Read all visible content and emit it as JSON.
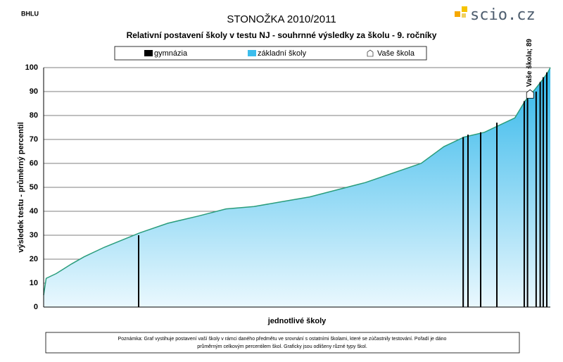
{
  "header": {
    "code": "BHLU",
    "logo": "scio.cz"
  },
  "chart_data": {
    "type": "area",
    "title": "STONOŽKA 2010/2011",
    "subtitle": "Relativní postavení školy v testu NJ - souhrnné výsledky za školu - 9. ročníky",
    "x_label": "jednotlivé školy",
    "y_label": "výsledek testu - průměrný percentil",
    "note": [
      "Poznámka: Graf vystihuje postavení vaší školy v rámci daného předmětu ve srovnání s ostatními školami, které se zúčastnily testování. Pořadí je dáno",
      "průměrným celkovým percentilem škol. Graficky jsou odlišeny různé typy škol."
    ],
    "xlim": [
      0,
      200
    ],
    "ylim": [
      0,
      100
    ],
    "yticks": [
      0,
      10,
      20,
      30,
      40,
      50,
      60,
      70,
      80,
      90,
      100
    ],
    "grid": true,
    "series": [
      {
        "name": "gymnázia",
        "type": "bar",
        "color": "#000000",
        "x": [
          37.5,
          165.6,
          167.5,
          172.5,
          178.9,
          189.7,
          191,
          194.4,
          196,
          197.2,
          198.6
        ],
        "values": [
          30,
          71,
          72,
          73,
          77,
          86,
          87,
          90,
          94,
          96,
          98
        ]
      },
      {
        "name": "základní školy",
        "type": "area",
        "color": "#3cbdec",
        "x": [
          0,
          1,
          5,
          11,
          16,
          24,
          38,
          49,
          61,
          72,
          83,
          94,
          105,
          116,
          127,
          138,
          149,
          158,
          166,
          174,
          180,
          186,
          190,
          194,
          197,
          199,
          200
        ],
        "values": [
          5,
          12,
          14,
          18,
          21,
          25,
          31,
          35,
          38,
          41,
          42,
          44,
          46,
          49,
          52,
          56,
          60,
          67,
          71,
          73,
          76,
          79,
          86,
          91,
          95,
          98,
          100
        ]
      },
      {
        "name": "Vaše škola",
        "type": "marker",
        "color": "#ffffff",
        "x": [
          192
        ],
        "values": [
          89
        ],
        "value_labels": [
          "Vaše škola; 89"
        ]
      }
    ]
  }
}
